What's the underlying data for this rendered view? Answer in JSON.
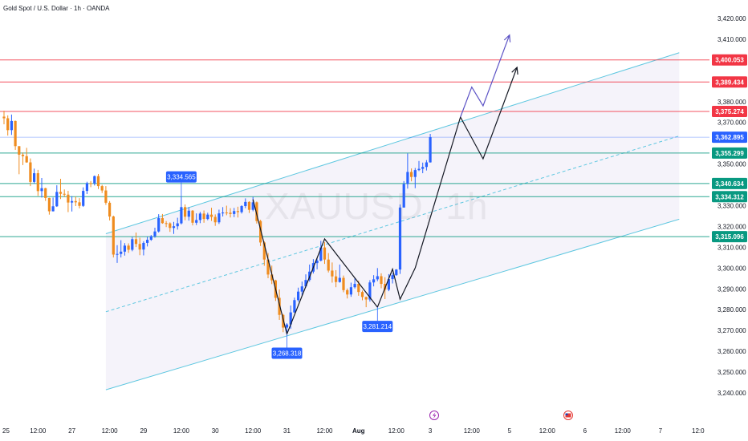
{
  "chart_data": {
    "type": "candlestick",
    "title": "Gold Spot / U.S. Dollar · 1h · OANDA",
    "watermark": "XAUUSD, 1h",
    "yaxis": {
      "range": [
        3235,
        3425
      ],
      "ticks": [
        "3,420.000",
        "3,410.000",
        "3,380.000",
        "3,370.000",
        "3,350.000",
        "3,330.000",
        "3,320.000",
        "3,310.000",
        "3,300.000",
        "3,290.000",
        "3,280.000",
        "3,270.000",
        "3,260.000",
        "3,250.000",
        "3,240.000"
      ],
      "tick_values": [
        3420,
        3410,
        3380,
        3370,
        3350,
        3330,
        3320,
        3310,
        3300,
        3290,
        3280,
        3270,
        3260,
        3250,
        3240
      ]
    },
    "xaxis": {
      "labels": [
        "25",
        "12:00",
        "27",
        "12:00",
        "29",
        "12:00",
        "30",
        "12:00",
        "31",
        "12:00",
        "Aug",
        "12:00",
        "3",
        "12:00",
        "5",
        "12:00",
        "6",
        "12:00",
        "7",
        "12:0"
      ],
      "label_bar_index": [
        0,
        9,
        18,
        28,
        37,
        47,
        56,
        66,
        75,
        85,
        94,
        104,
        113,
        124,
        134,
        144,
        154,
        164,
        174,
        184
      ],
      "label_bold": [
        false,
        false,
        false,
        false,
        false,
        false,
        false,
        false,
        false,
        false,
        true,
        false,
        false,
        false,
        false,
        false,
        false,
        false,
        false,
        false
      ]
    },
    "horizontal_levels": [
      {
        "value": 3400.053,
        "label": "3,400.053",
        "kind": "resistance",
        "color": "#f23645"
      },
      {
        "value": 3389.434,
        "label": "3,389.434",
        "kind": "resistance",
        "color": "#f23645"
      },
      {
        "value": 3375.274,
        "label": "3,375.274",
        "kind": "resistance",
        "color": "#f23645"
      },
      {
        "value": 3362.895,
        "label": "3,362.895",
        "kind": "last-price",
        "color": "#2962ff"
      },
      {
        "value": 3355.299,
        "label": "3,355.299",
        "kind": "support",
        "color": "#089981"
      },
      {
        "value": 3340.634,
        "label": "3,340.634",
        "kind": "support",
        "color": "#089981"
      },
      {
        "value": 3334.312,
        "label": "3,334.312",
        "kind": "support",
        "color": "#089981"
      },
      {
        "value": 3315.096,
        "label": "3,315.096",
        "kind": "support",
        "color": "#089981"
      }
    ],
    "point_callouts": [
      {
        "label": "3,334.565",
        "bar": 47,
        "value": 3334.565,
        "side": "above"
      },
      {
        "label": "3,268.318",
        "bar": 75,
        "value": 3268.318,
        "side": "below"
      },
      {
        "label": "3,281.214",
        "bar": 99,
        "value": 3281.214,
        "side": "below"
      }
    ],
    "channel": {
      "lower": [
        [
          27,
          3241.5
        ],
        [
          179,
          3323.5
        ]
      ],
      "upper": [
        [
          27,
          3316.5
        ],
        [
          179,
          3403.5
        ]
      ]
    },
    "zigzag": [
      [
        66,
        3333
      ],
      [
        75,
        3268.3
      ],
      [
        85,
        3314
      ],
      [
        99,
        3281.2
      ],
      [
        103,
        3299.5
      ],
      [
        105,
        3285
      ],
      [
        109,
        3300
      ]
    ],
    "projections": [
      {
        "color": "#131722",
        "points": [
          [
            109,
            3300
          ],
          [
            121,
            3372.6
          ],
          [
            127,
            3352.5
          ],
          [
            136,
            3396.5
          ]
        ]
      },
      {
        "color": "#5b52c5",
        "points": [
          [
            121,
            3372.6
          ],
          [
            124,
            3387
          ],
          [
            127,
            3378
          ],
          [
            134,
            3412
          ]
        ]
      }
    ],
    "candles": [
      [
        3372.8,
        3375.6,
        3369.1,
        3372.0
      ],
      [
        3372.0,
        3373.4,
        3363.7,
        3366.3
      ],
      [
        3366.3,
        3373.8,
        3364.0,
        3370.7
      ],
      [
        3370.7,
        3370.9,
        3356.8,
        3358.6
      ],
      [
        3358.6,
        3358.6,
        3345.1,
        3354.5
      ],
      [
        3354.5,
        3355.6,
        3349.5,
        3353.8
      ],
      [
        3353.8,
        3357.8,
        3350.6,
        3350.8
      ],
      [
        3350.8,
        3352.7,
        3339.4,
        3341.4
      ],
      [
        3341.4,
        3347.8,
        3340.6,
        3345.6
      ],
      [
        3345.6,
        3347.2,
        3334.7,
        3337.0
      ],
      [
        3337.0,
        3343.3,
        3333.9,
        3338.4
      ],
      [
        3338.4,
        3338.6,
        3332.3,
        3333.7
      ],
      [
        3333.7,
        3333.8,
        3325.7,
        3327.3
      ],
      [
        3327.3,
        3333.9,
        3327.2,
        3329.7
      ],
      [
        3329.7,
        3339.8,
        3329.4,
        3336.6
      ],
      [
        3336.6,
        3342.9,
        3333.2,
        3335.7
      ],
      [
        3335.7,
        3337.8,
        3334.1,
        3335.3
      ],
      [
        3335.3,
        3337.1,
        3326.9,
        3331.5
      ],
      [
        3331.5,
        3334.6,
        3327.2,
        3332.2
      ],
      [
        3332.2,
        3334.4,
        3329.8,
        3331.6
      ],
      [
        3331.6,
        3333.6,
        3328.7,
        3329.9
      ],
      [
        3329.9,
        3338.8,
        3329.4,
        3337.1
      ],
      [
        3337.1,
        3341.5,
        3335.6,
        3340.8
      ],
      [
        3340.8,
        3341.8,
        3338.9,
        3340.7
      ],
      [
        3340.7,
        3344.5,
        3339.7,
        3344.2
      ],
      [
        3344.2,
        3345.2,
        3338.0,
        3339.4
      ],
      [
        3339.4,
        3340.0,
        3336.1,
        3337.3
      ],
      [
        3337.3,
        3339.4,
        3330.4,
        3331.4
      ],
      [
        3331.4,
        3332.2,
        3322.9,
        3324.8
      ],
      [
        3324.8,
        3325.2,
        3305.1,
        3306.5
      ],
      [
        3306.5,
        3311.0,
        3302.5,
        3306.8
      ],
      [
        3306.8,
        3313.4,
        3305.1,
        3307.9
      ],
      [
        3307.9,
        3312.0,
        3306.0,
        3310.8
      ],
      [
        3310.8,
        3311.9,
        3307.3,
        3308.8
      ],
      [
        3308.8,
        3314.9,
        3308.1,
        3313.9
      ],
      [
        3313.9,
        3317.1,
        3310.1,
        3311.6
      ],
      [
        3311.6,
        3314.6,
        3306.2,
        3308.9
      ],
      [
        3308.9,
        3312.9,
        3306.1,
        3312.1
      ],
      [
        3312.1,
        3315.0,
        3310.4,
        3313.6
      ],
      [
        3313.6,
        3315.9,
        3313.1,
        3315.3
      ],
      [
        3315.3,
        3319.4,
        3314.6,
        3317.6
      ],
      [
        3317.6,
        3325.9,
        3317.1,
        3324.0
      ],
      [
        3324.0,
        3326.0,
        3321.3,
        3321.6
      ],
      [
        3321.6,
        3322.6,
        3319.7,
        3321.5
      ],
      [
        3321.5,
        3322.0,
        3317.4,
        3319.3
      ],
      [
        3319.3,
        3322.2,
        3316.4,
        3320.1
      ],
      [
        3320.1,
        3324.2,
        3318.5,
        3321.5
      ],
      [
        3321.5,
        3334.6,
        3321.0,
        3329.3
      ],
      [
        3329.3,
        3330.6,
        3323.0,
        3324.7
      ],
      [
        3324.7,
        3329.3,
        3322.8,
        3327.6
      ],
      [
        3327.6,
        3327.9,
        3320.5,
        3321.8
      ],
      [
        3321.8,
        3326.3,
        3320.7,
        3323.1
      ],
      [
        3323.1,
        3327.0,
        3321.6,
        3326.2
      ],
      [
        3326.2,
        3327.7,
        3321.8,
        3323.6
      ],
      [
        3323.6,
        3326.6,
        3323.0,
        3325.7
      ],
      [
        3325.7,
        3329.0,
        3322.7,
        3324.6
      ],
      [
        3324.6,
        3325.8,
        3320.3,
        3322.0
      ],
      [
        3322.0,
        3328.1,
        3321.2,
        3326.3
      ],
      [
        3326.3,
        3329.3,
        3324.8,
        3326.7
      ],
      [
        3326.7,
        3330.0,
        3325.4,
        3326.6
      ],
      [
        3326.6,
        3328.8,
        3324.3,
        3326.0
      ],
      [
        3326.0,
        3328.9,
        3324.5,
        3327.4
      ],
      [
        3327.4,
        3329.5,
        3324.3,
        3326.9
      ],
      [
        3326.9,
        3330.2,
        3326.2,
        3329.8
      ],
      [
        3329.8,
        3333.5,
        3328.8,
        3331.8
      ],
      [
        3331.8,
        3332.1,
        3326.5,
        3328.0
      ],
      [
        3328.0,
        3334.2,
        3327.3,
        3331.6
      ],
      [
        3331.6,
        3332.0,
        3321.4,
        3322.6
      ],
      [
        3322.6,
        3323.2,
        3310.6,
        3312.3
      ],
      [
        3312.3,
        3312.9,
        3301.1,
        3304.1
      ],
      [
        3304.1,
        3307.2,
        3295.1,
        3296.9
      ],
      [
        3296.9,
        3301.2,
        3292.3,
        3294.1
      ],
      [
        3294.1,
        3294.4,
        3284.2,
        3285.7
      ],
      [
        3285.7,
        3289.7,
        3275.1,
        3277.5
      ],
      [
        3277.5,
        3278.0,
        3269.2,
        3271.4
      ],
      [
        3271.4,
        3273.5,
        3268.3,
        3272.9
      ],
      [
        3272.9,
        3282.0,
        3270.8,
        3278.7
      ],
      [
        3278.7,
        3285.8,
        3278.5,
        3284.6
      ],
      [
        3284.6,
        3290.6,
        3283.8,
        3288.7
      ],
      [
        3288.7,
        3293.5,
        3286.6,
        3291.2
      ],
      [
        3291.2,
        3297.0,
        3290.6,
        3294.3
      ],
      [
        3294.3,
        3301.7,
        3293.5,
        3298.3
      ],
      [
        3298.3,
        3304.3,
        3297.4,
        3302.4
      ],
      [
        3302.4,
        3304.8,
        3299.4,
        3303.6
      ],
      [
        3303.6,
        3313.1,
        3303.2,
        3309.9
      ],
      [
        3309.9,
        3312.4,
        3302.0,
        3304.1
      ],
      [
        3304.1,
        3307.2,
        3297.9,
        3298.8
      ],
      [
        3298.8,
        3302.7,
        3293.0,
        3296.0
      ],
      [
        3296.0,
        3299.0,
        3290.8,
        3293.3
      ],
      [
        3293.3,
        3301.7,
        3293.0,
        3295.3
      ],
      [
        3295.3,
        3296.4,
        3288.4,
        3289.4
      ],
      [
        3289.4,
        3290.2,
        3285.4,
        3287.3
      ],
      [
        3287.3,
        3293.0,
        3286.2,
        3290.8
      ],
      [
        3290.8,
        3295.4,
        3290.2,
        3292.4
      ],
      [
        3292.4,
        3294.0,
        3286.7,
        3288.5
      ],
      [
        3288.5,
        3289.2,
        3284.5,
        3286.1
      ],
      [
        3286.1,
        3286.3,
        3281.2,
        3284.9
      ],
      [
        3284.9,
        3294.2,
        3283.9,
        3293.1
      ],
      [
        3293.1,
        3296.6,
        3291.2,
        3294.6
      ],
      [
        3294.6,
        3300.0,
        3293.7,
        3296.1
      ],
      [
        3296.1,
        3297.5,
        3290.3,
        3292.4
      ],
      [
        3292.4,
        3295.6,
        3285.1,
        3289.6
      ],
      [
        3289.6,
        3297.1,
        3288.9,
        3294.7
      ],
      [
        3294.7,
        3297.5,
        3292.6,
        3296.6
      ],
      [
        3296.6,
        3299.5,
        3296.3,
        3299.3
      ],
      [
        3299.3,
        3330.6,
        3297.2,
        3329.1
      ],
      [
        3329.1,
        3341.8,
        3329.1,
        3340.4
      ],
      [
        3340.4,
        3355.1,
        3338.2,
        3346.2
      ],
      [
        3346.2,
        3347.9,
        3341.7,
        3343.8
      ],
      [
        3343.8,
        3348.1,
        3338.4,
        3347.1
      ],
      [
        3347.1,
        3351.5,
        3346.6,
        3347.7
      ],
      [
        3347.7,
        3350.7,
        3345.6,
        3348.6
      ],
      [
        3348.6,
        3351.9,
        3346.9,
        3350.8
      ],
      [
        3350.8,
        3364.5,
        3350.7,
        3362.9
      ]
    ]
  }
}
